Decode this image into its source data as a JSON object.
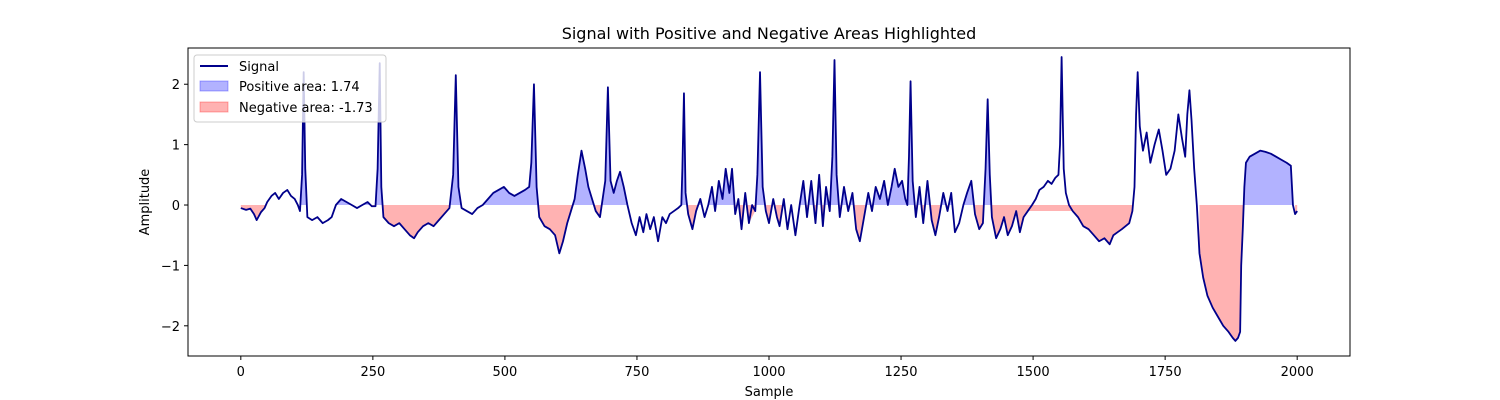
{
  "chart_data": {
    "type": "line",
    "title": "Signal with Positive and Negative Areas Highlighted",
    "xlabel": "Sample",
    "ylabel": "Amplitude",
    "xlim": [
      -100,
      2100
    ],
    "ylim": [
      -2.5,
      2.6
    ],
    "xticks": [
      0,
      250,
      500,
      750,
      1000,
      1250,
      1500,
      1750,
      2000
    ],
    "yticks": [
      -2,
      -1,
      0,
      1,
      2
    ],
    "ytick_labels": [
      "−2",
      "−1",
      "0",
      "1",
      "2"
    ],
    "grid": false,
    "legend_position": "top-left",
    "series": [
      {
        "name": "Signal",
        "color": "#00008b",
        "points": [
          [
            0,
            -0.05
          ],
          [
            10,
            -0.08
          ],
          [
            18,
            -0.06
          ],
          [
            25,
            -0.15
          ],
          [
            30,
            -0.25
          ],
          [
            38,
            -0.12
          ],
          [
            45,
            -0.05
          ],
          [
            50,
            0.05
          ],
          [
            58,
            0.15
          ],
          [
            65,
            0.2
          ],
          [
            72,
            0.1
          ],
          [
            80,
            0.2
          ],
          [
            88,
            0.25
          ],
          [
            95,
            0.15
          ],
          [
            102,
            0.1
          ],
          [
            108,
            0.0
          ],
          [
            112,
            -0.1
          ],
          [
            116,
            0.5
          ],
          [
            119,
            2.2
          ],
          [
            122,
            0.6
          ],
          [
            126,
            -0.2
          ],
          [
            135,
            -0.25
          ],
          [
            145,
            -0.2
          ],
          [
            155,
            -0.3
          ],
          [
            165,
            -0.25
          ],
          [
            172,
            -0.2
          ],
          [
            180,
            0.0
          ],
          [
            190,
            0.1
          ],
          [
            200,
            0.05
          ],
          [
            210,
            0.0
          ],
          [
            220,
            -0.05
          ],
          [
            230,
            0.0
          ],
          [
            240,
            0.05
          ],
          [
            248,
            -0.02
          ],
          [
            255,
            -0.02
          ],
          [
            259,
            0.6
          ],
          [
            263,
            2.35
          ],
          [
            266,
            0.3
          ],
          [
            270,
            -0.2
          ],
          [
            280,
            -0.3
          ],
          [
            290,
            -0.35
          ],
          [
            300,
            -0.3
          ],
          [
            310,
            -0.4
          ],
          [
            320,
            -0.5
          ],
          [
            328,
            -0.55
          ],
          [
            335,
            -0.45
          ],
          [
            345,
            -0.35
          ],
          [
            355,
            -0.3
          ],
          [
            365,
            -0.35
          ],
          [
            375,
            -0.25
          ],
          [
            385,
            -0.15
          ],
          [
            395,
            -0.05
          ],
          [
            402,
            0.5
          ],
          [
            407,
            2.15
          ],
          [
            412,
            0.3
          ],
          [
            418,
            -0.05
          ],
          [
            428,
            -0.1
          ],
          [
            438,
            -0.15
          ],
          [
            448,
            -0.05
          ],
          [
            458,
            0.0
          ],
          [
            468,
            0.1
          ],
          [
            478,
            0.2
          ],
          [
            488,
            0.25
          ],
          [
            498,
            0.3
          ],
          [
            508,
            0.2
          ],
          [
            518,
            0.15
          ],
          [
            528,
            0.2
          ],
          [
            538,
            0.25
          ],
          [
            546,
            0.3
          ],
          [
            550,
            0.7
          ],
          [
            555,
            2.0
          ],
          [
            560,
            0.3
          ],
          [
            565,
            -0.2
          ],
          [
            575,
            -0.35
          ],
          [
            585,
            -0.4
          ],
          [
            595,
            -0.5
          ],
          [
            603,
            -0.8
          ],
          [
            610,
            -0.6
          ],
          [
            618,
            -0.3
          ],
          [
            625,
            -0.1
          ],
          [
            632,
            0.1
          ],
          [
            638,
            0.5
          ],
          [
            645,
            0.9
          ],
          [
            652,
            0.6
          ],
          [
            658,
            0.3
          ],
          [
            665,
            0.1
          ],
          [
            672,
            -0.1
          ],
          [
            680,
            -0.2
          ],
          [
            690,
            0.4
          ],
          [
            695,
            1.95
          ],
          [
            700,
            0.4
          ],
          [
            706,
            0.2
          ],
          [
            712,
            0.4
          ],
          [
            718,
            0.55
          ],
          [
            725,
            0.3
          ],
          [
            732,
            0.0
          ],
          [
            740,
            -0.3
          ],
          [
            748,
            -0.5
          ],
          [
            755,
            -0.2
          ],
          [
            762,
            -0.45
          ],
          [
            768,
            -0.15
          ],
          [
            775,
            -0.4
          ],
          [
            782,
            -0.2
          ],
          [
            790,
            -0.6
          ],
          [
            798,
            -0.2
          ],
          [
            805,
            -0.3
          ],
          [
            812,
            -0.15
          ],
          [
            820,
            -0.1
          ],
          [
            828,
            -0.05
          ],
          [
            834,
            0.0
          ],
          [
            836,
            0.6
          ],
          [
            839,
            1.85
          ],
          [
            842,
            0.2
          ],
          [
            847,
            -0.15
          ],
          [
            855,
            -0.4
          ],
          [
            862,
            -0.1
          ],
          [
            870,
            0.1
          ],
          [
            878,
            -0.2
          ],
          [
            885,
            0.0
          ],
          [
            892,
            0.3
          ],
          [
            898,
            -0.1
          ],
          [
            905,
            0.4
          ],
          [
            912,
            0.1
          ],
          [
            918,
            0.6
          ],
          [
            925,
            0.2
          ],
          [
            930,
            0.6
          ],
          [
            936,
            -0.15
          ],
          [
            942,
            0.1
          ],
          [
            948,
            -0.4
          ],
          [
            955,
            0.2
          ],
          [
            962,
            -0.3
          ],
          [
            968,
            0.0
          ],
          [
            974,
            -0.1
          ],
          [
            978,
            0.5
          ],
          [
            983,
            2.2
          ],
          [
            988,
            0.3
          ],
          [
            994,
            -0.1
          ],
          [
            1000,
            -0.3
          ],
          [
            1008,
            0.1
          ],
          [
            1015,
            -0.2
          ],
          [
            1020,
            -0.35
          ],
          [
            1028,
            0.1
          ],
          [
            1035,
            -0.4
          ],
          [
            1042,
            0.0
          ],
          [
            1050,
            -0.5
          ],
          [
            1058,
            0.0
          ],
          [
            1065,
            0.4
          ],
          [
            1072,
            -0.2
          ],
          [
            1080,
            0.4
          ],
          [
            1088,
            -0.3
          ],
          [
            1095,
            0.5
          ],
          [
            1102,
            -0.35
          ],
          [
            1108,
            0.3
          ],
          [
            1115,
            -0.1
          ],
          [
            1120,
            0.8
          ],
          [
            1124,
            2.4
          ],
          [
            1128,
            0.5
          ],
          [
            1134,
            -0.2
          ],
          [
            1142,
            0.3
          ],
          [
            1150,
            -0.1
          ],
          [
            1158,
            0.2
          ],
          [
            1165,
            -0.4
          ],
          [
            1172,
            -0.6
          ],
          [
            1180,
            -0.2
          ],
          [
            1188,
            0.2
          ],
          [
            1195,
            -0.1
          ],
          [
            1202,
            0.3
          ],
          [
            1210,
            0.1
          ],
          [
            1218,
            0.4
          ],
          [
            1225,
            0.0
          ],
          [
            1232,
            0.3
          ],
          [
            1238,
            0.6
          ],
          [
            1245,
            0.3
          ],
          [
            1252,
            0.4
          ],
          [
            1258,
            0.1
          ],
          [
            1262,
            0.0
          ],
          [
            1265,
            0.8
          ],
          [
            1268,
            2.05
          ],
          [
            1272,
            0.4
          ],
          [
            1278,
            -0.2
          ],
          [
            1285,
            0.3
          ],
          [
            1292,
            -0.3
          ],
          [
            1300,
            0.4
          ],
          [
            1308,
            -0.25
          ],
          [
            1315,
            -0.5
          ],
          [
            1322,
            -0.2
          ],
          [
            1330,
            0.2
          ],
          [
            1338,
            -0.1
          ],
          [
            1345,
            0.2
          ],
          [
            1352,
            -0.45
          ],
          [
            1360,
            -0.3
          ],
          [
            1368,
            0.0
          ],
          [
            1375,
            0.2
          ],
          [
            1383,
            0.4
          ],
          [
            1390,
            -0.15
          ],
          [
            1398,
            -0.4
          ],
          [
            1405,
            -0.3
          ],
          [
            1410,
            0.6
          ],
          [
            1414,
            1.75
          ],
          [
            1418,
            0.5
          ],
          [
            1422,
            -0.2
          ],
          [
            1430,
            -0.55
          ],
          [
            1438,
            -0.4
          ],
          [
            1445,
            -0.2
          ],
          [
            1452,
            -0.5
          ],
          [
            1460,
            -0.35
          ],
          [
            1468,
            -0.1
          ],
          [
            1475,
            -0.45
          ],
          [
            1482,
            -0.2
          ],
          [
            1490,
            -0.1
          ],
          [
            1498,
            0.0
          ],
          [
            1505,
            0.1
          ],
          [
            1512,
            0.25
          ],
          [
            1520,
            0.3
          ],
          [
            1528,
            0.4
          ],
          [
            1535,
            0.35
          ],
          [
            1542,
            0.45
          ],
          [
            1548,
            0.5
          ],
          [
            1551,
            1.0
          ],
          [
            1554,
            2.45
          ],
          [
            1558,
            0.6
          ],
          [
            1562,
            0.2
          ],
          [
            1568,
            0.0
          ],
          [
            1575,
            -0.1
          ],
          [
            1585,
            -0.2
          ],
          [
            1595,
            -0.35
          ],
          [
            1605,
            -0.4
          ],
          [
            1615,
            -0.5
          ],
          [
            1625,
            -0.6
          ],
          [
            1635,
            -0.55
          ],
          [
            1645,
            -0.65
          ],
          [
            1652,
            -0.5
          ],
          [
            1660,
            -0.45
          ],
          [
            1668,
            -0.4
          ],
          [
            1675,
            -0.35
          ],
          [
            1682,
            -0.3
          ],
          [
            1688,
            -0.1
          ],
          [
            1692,
            0.3
          ],
          [
            1695,
            1.5
          ],
          [
            1698,
            2.2
          ],
          [
            1702,
            1.3
          ],
          [
            1708,
            0.9
          ],
          [
            1715,
            1.2
          ],
          [
            1722,
            0.7
          ],
          [
            1730,
            1.0
          ],
          [
            1738,
            1.25
          ],
          [
            1745,
            0.9
          ],
          [
            1752,
            0.5
          ],
          [
            1760,
            0.6
          ],
          [
            1768,
            0.9
          ],
          [
            1775,
            1.5
          ],
          [
            1782,
            1.1
          ],
          [
            1788,
            0.8
          ],
          [
            1792,
            1.5
          ],
          [
            1796,
            1.9
          ],
          [
            1800,
            1.4
          ],
          [
            1805,
            0.6
          ],
          [
            1810,
            0.0
          ],
          [
            1815,
            -0.8
          ],
          [
            1822,
            -1.2
          ],
          [
            1830,
            -1.5
          ],
          [
            1840,
            -1.7
          ],
          [
            1850,
            -1.85
          ],
          [
            1860,
            -2.0
          ],
          [
            1870,
            -2.1
          ],
          [
            1878,
            -2.2
          ],
          [
            1883,
            -2.25
          ],
          [
            1888,
            -2.2
          ],
          [
            1892,
            -2.1
          ],
          [
            1894,
            -1.0
          ],
          [
            1897,
            -0.4
          ],
          [
            1900,
            0.3
          ],
          [
            1903,
            0.7
          ],
          [
            1910,
            0.8
          ],
          [
            1920,
            0.85
          ],
          [
            1930,
            0.9
          ],
          [
            1940,
            0.88
          ],
          [
            1950,
            0.85
          ],
          [
            1960,
            0.8
          ],
          [
            1970,
            0.75
          ],
          [
            1980,
            0.7
          ],
          [
            1988,
            0.65
          ],
          [
            1992,
            0.0
          ],
          [
            1996,
            -0.15
          ],
          [
            2000,
            -0.1
          ]
        ]
      }
    ],
    "legend": [
      {
        "label": "Signal",
        "kind": "line",
        "color": "#00008b"
      },
      {
        "label": "Positive area: 1.74",
        "kind": "patch",
        "color": "#0000ff",
        "alpha": 0.3
      },
      {
        "label": "Negative area: -1.73",
        "kind": "patch",
        "color": "#ff0000",
        "alpha": 0.3
      }
    ]
  }
}
